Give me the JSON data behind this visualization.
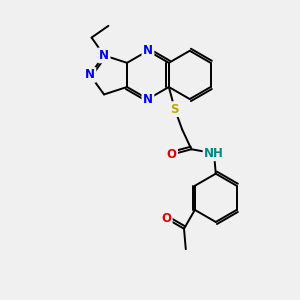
{
  "background_color": "#f0f0f0",
  "atom_colors": {
    "N": "#0000ee",
    "O": "#dd0000",
    "S": "#bbaa00",
    "C": "#000000",
    "H": "#008888"
  },
  "bond_color": "#000000",
  "bond_width": 1.4,
  "font_size_atom": 8.5,
  "fig_w": 3.0,
  "fig_h": 3.0,
  "dpi": 100
}
